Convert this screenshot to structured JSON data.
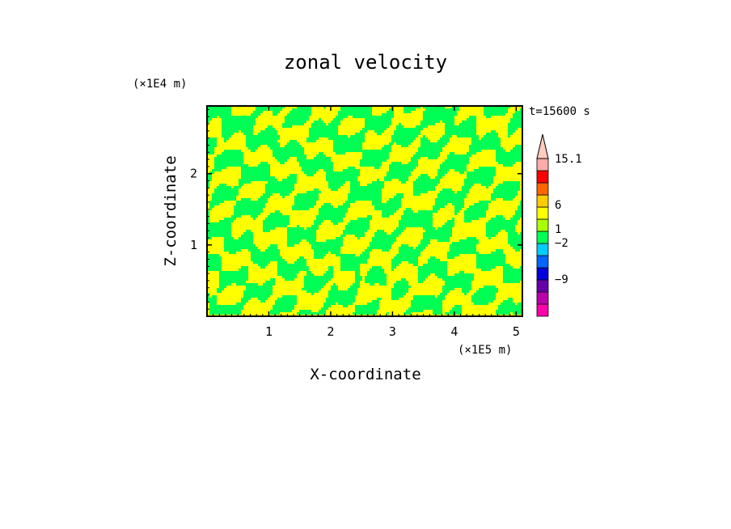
{
  "chart_data": {
    "type": "heatmap",
    "title": "zonal velocity",
    "xlabel": "X-coordinate",
    "ylabel": "Z-coordinate",
    "x_scale_label": "(×1E5 m)",
    "y_scale_label": "(×1E4 m)",
    "time_label": "t=15600 s",
    "xlim": [
      0,
      5.1
    ],
    "ylim": [
      0,
      2.95
    ],
    "x_ticks": [
      1,
      2,
      3,
      4,
      5
    ],
    "y_ticks": [
      1,
      2
    ],
    "field_colors": [
      "#ffff00",
      "#00ff55"
    ],
    "colorbar": {
      "bins": [
        {
          "color": "#ff00aa"
        },
        {
          "color": "#bb00aa"
        },
        {
          "color": "#6600aa"
        },
        {
          "color": "#0000dd"
        },
        {
          "color": "#0066ff"
        },
        {
          "color": "#00ccff"
        },
        {
          "color": "#00ff55"
        },
        {
          "color": "#aaff00"
        },
        {
          "color": "#ffff00"
        },
        {
          "color": "#ffcc00"
        },
        {
          "color": "#ff6600"
        },
        {
          "color": "#ff0000"
        },
        {
          "color": "#ffaaaa"
        }
      ],
      "top_color": "#ffccbb",
      "labels": [
        "15.1",
        "6",
        "1",
        "−2",
        "−9"
      ]
    }
  }
}
